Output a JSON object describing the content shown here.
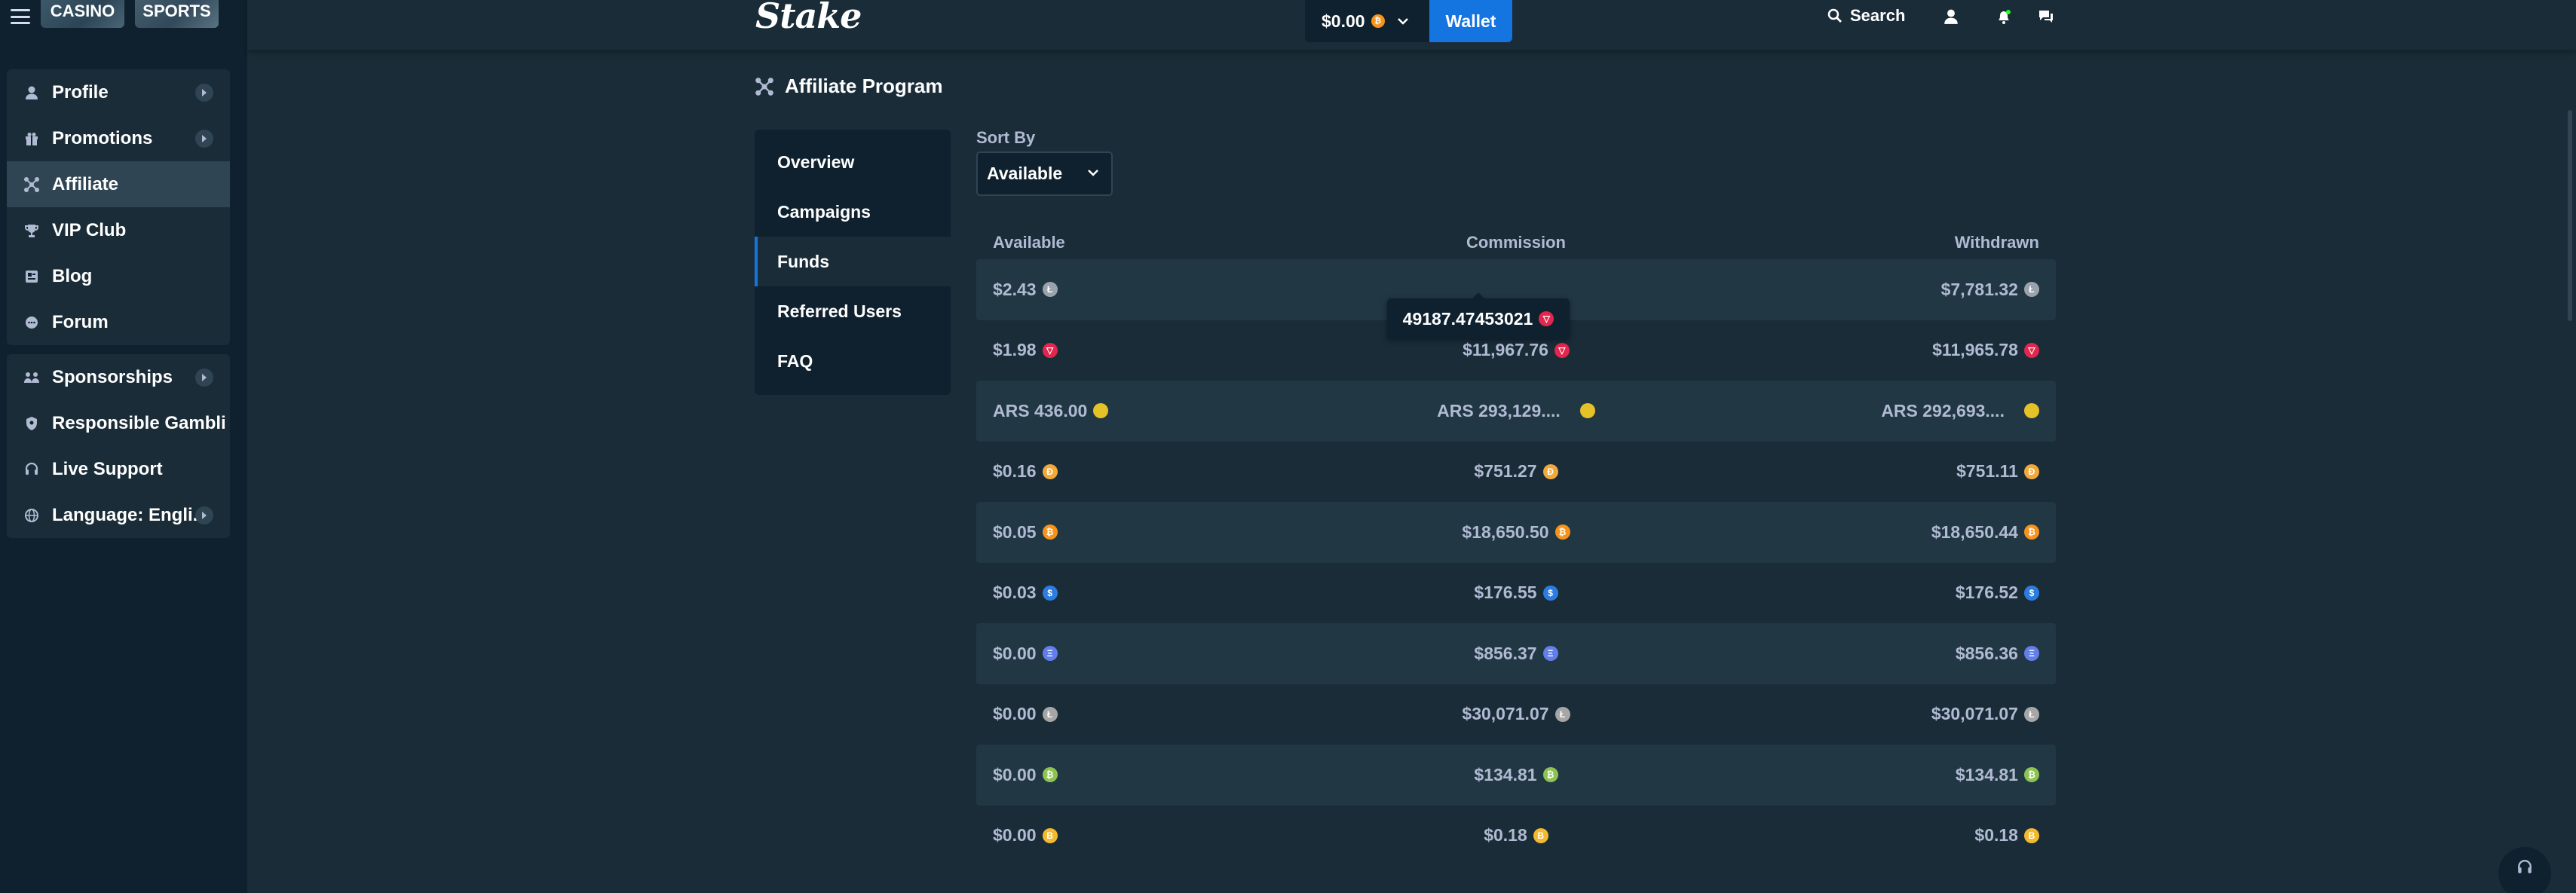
{
  "header": {
    "logo": "Stake",
    "balance": "$0.00",
    "wallet_label": "Wallet",
    "search_label": "Search"
  },
  "sidebar": {
    "casino_label": "CASINO",
    "sports_label": "SPORTS",
    "group1": [
      {
        "label": "Profile",
        "icon": "user-icon",
        "chevron": true
      },
      {
        "label": "Promotions",
        "icon": "gift-icon",
        "chevron": true
      },
      {
        "label": "Affiliate",
        "icon": "affiliate-icon",
        "chevron": false,
        "active": true
      },
      {
        "label": "VIP Club",
        "icon": "trophy-icon",
        "chevron": false
      },
      {
        "label": "Blog",
        "icon": "blog-icon",
        "chevron": false
      },
      {
        "label": "Forum",
        "icon": "chat-icon",
        "chevron": false
      }
    ],
    "group2": [
      {
        "label": "Sponsorships",
        "icon": "sponsorship-icon",
        "chevron": true
      },
      {
        "label": "Responsible Gambli...",
        "icon": "shield-icon",
        "chevron": false
      },
      {
        "label": "Live Support",
        "icon": "headset-icon",
        "chevron": false
      },
      {
        "label": "Language: Engli...",
        "icon": "globe-icon",
        "chevron": true
      }
    ]
  },
  "page": {
    "title": "Affiliate Program"
  },
  "subnav": {
    "items": [
      "Overview",
      "Campaigns",
      "Funds",
      "Referred Users",
      "FAQ"
    ],
    "active": "Funds"
  },
  "sort": {
    "label": "Sort By",
    "value": "Available"
  },
  "table": {
    "headers": {
      "available": "Available",
      "commission": "Commission",
      "withdrawn": "Withdrawn"
    },
    "rows": [
      {
        "available": "$2.43",
        "commission": "",
        "withdrawn": "$7,781.32",
        "coin": "#9aa3ad"
      },
      {
        "available": "$1.98",
        "commission": "$11,967.76",
        "withdrawn": "$11,965.78",
        "coin": "#e2264d"
      },
      {
        "available": "ARS 436.00",
        "commission": "ARS 293,129....",
        "withdrawn": "ARS 292,693....",
        "coin": "#e6c229"
      },
      {
        "available": "$0.16",
        "commission": "$751.27",
        "withdrawn": "$751.11",
        "coin": "#f2a93b"
      },
      {
        "available": "$0.05",
        "commission": "$18,650.50",
        "withdrawn": "$18,650.44",
        "coin": "#f7931a"
      },
      {
        "available": "$0.03",
        "commission": "$176.55",
        "withdrawn": "$176.52",
        "coin": "#2b7de0"
      },
      {
        "available": "$0.00",
        "commission": "$856.37",
        "withdrawn": "$856.36",
        "coin": "#627eea"
      },
      {
        "available": "$0.00",
        "commission": "$30,071.07",
        "withdrawn": "$30,071.07",
        "coin": "#a6a6a6"
      },
      {
        "available": "$0.00",
        "commission": "$134.81",
        "withdrawn": "$134.81",
        "coin": "#8dc351"
      },
      {
        "available": "$0.00",
        "commission": "$0.18",
        "withdrawn": "$0.18",
        "coin": "#f3ba2f"
      }
    ],
    "tooltip": "49187.47453021"
  },
  "colors": {
    "accent": "#1475e1",
    "bg": "#1a2c38",
    "sidebar": "#0f212e"
  }
}
